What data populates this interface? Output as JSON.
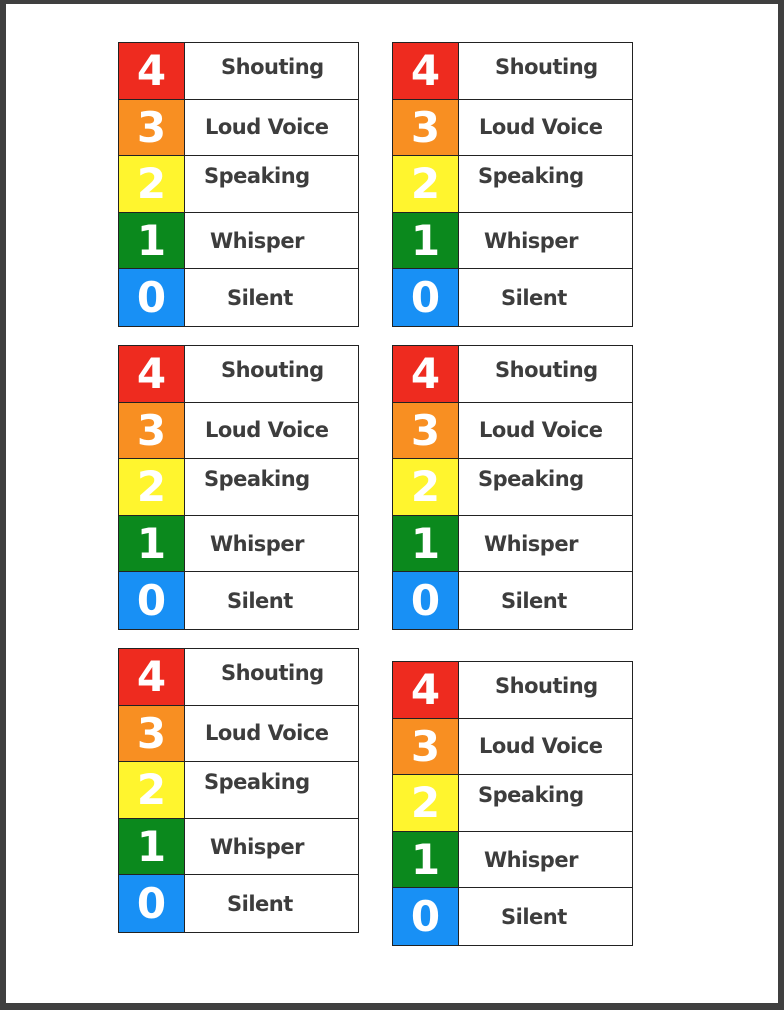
{
  "colors": {
    "red": "#ee2b1f",
    "orange": "#f88f22",
    "yellow": "#fff52e",
    "green": "#0b891d",
    "blue": "#1890f5",
    "text": "#3d3d3d"
  },
  "levels": [
    {
      "number": "4",
      "label": "Shouting",
      "color": "#ee2b1f"
    },
    {
      "number": "3",
      "label": "Loud Voice",
      "color": "#f88f22"
    },
    {
      "number": "2",
      "label": "Speaking",
      "color": "#fff52e"
    },
    {
      "number": "1",
      "label": "Whisper",
      "color": "#0b891d"
    },
    {
      "number": "0",
      "label": "Silent",
      "color": "#1890f5"
    }
  ],
  "card_count": 6
}
